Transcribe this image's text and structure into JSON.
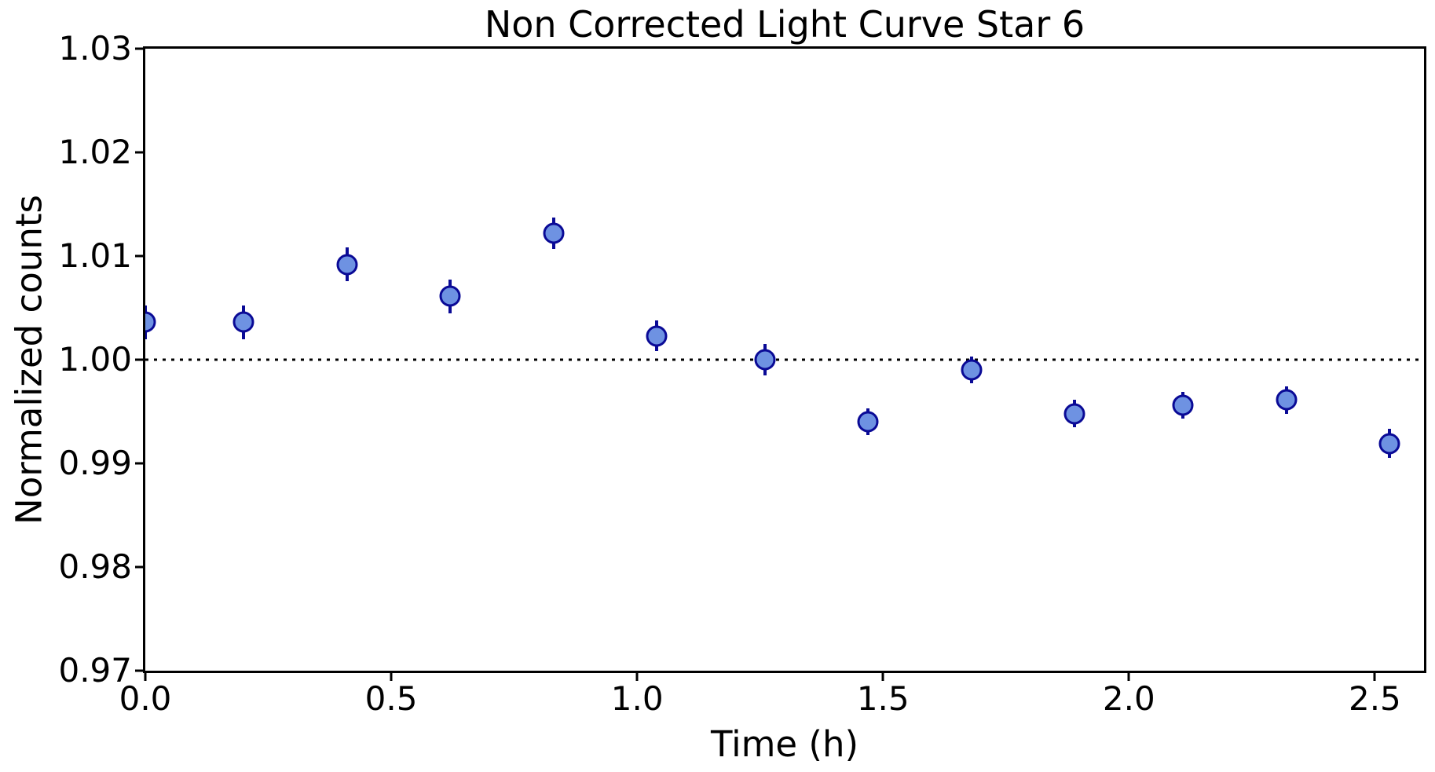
{
  "chart_data": {
    "type": "scatter",
    "title": "Non Corrected Light Curve Star 6",
    "xlabel": "Time (h)",
    "ylabel": "Normalized counts",
    "xlim": [
      0.0,
      2.6
    ],
    "ylim": [
      0.97,
      1.03
    ],
    "xticks": [
      0.0,
      0.5,
      1.0,
      1.5,
      2.0,
      2.5
    ],
    "xtick_labels": [
      "0.0",
      "0.5",
      "1.0",
      "1.5",
      "2.0",
      "2.5"
    ],
    "yticks": [
      0.97,
      0.98,
      0.99,
      1.0,
      1.01,
      1.02,
      1.03
    ],
    "ytick_labels": [
      "0.97",
      "0.98",
      "0.99",
      "1.00",
      "1.01",
      "1.02",
      "1.03"
    ],
    "grid": false,
    "legend": "none",
    "reference_line": {
      "y": 1.0,
      "style": "dotted",
      "color": "#000000"
    },
    "series": [
      {
        "name": "normalized-counts-with-errorbars",
        "marker": "circle",
        "marker_fill": "#6e92e2",
        "marker_edge": "#0a0a96",
        "errorbar_color": "#0a0a96",
        "x": [
          0.0,
          0.2,
          0.41,
          0.62,
          0.83,
          1.04,
          1.26,
          1.47,
          1.68,
          1.89,
          2.11,
          2.32,
          2.53
        ],
        "y": [
          1.0036,
          1.0036,
          1.0092,
          1.0061,
          1.0122,
          1.0023,
          1.0,
          0.994,
          0.999,
          0.9948,
          0.9956,
          0.9961,
          0.9919
        ],
        "yerr": [
          0.0016,
          0.0016,
          0.0016,
          0.0016,
          0.0015,
          0.0015,
          0.0015,
          0.0013,
          0.0013,
          0.0013,
          0.0013,
          0.0013,
          0.0014
        ]
      }
    ]
  }
}
